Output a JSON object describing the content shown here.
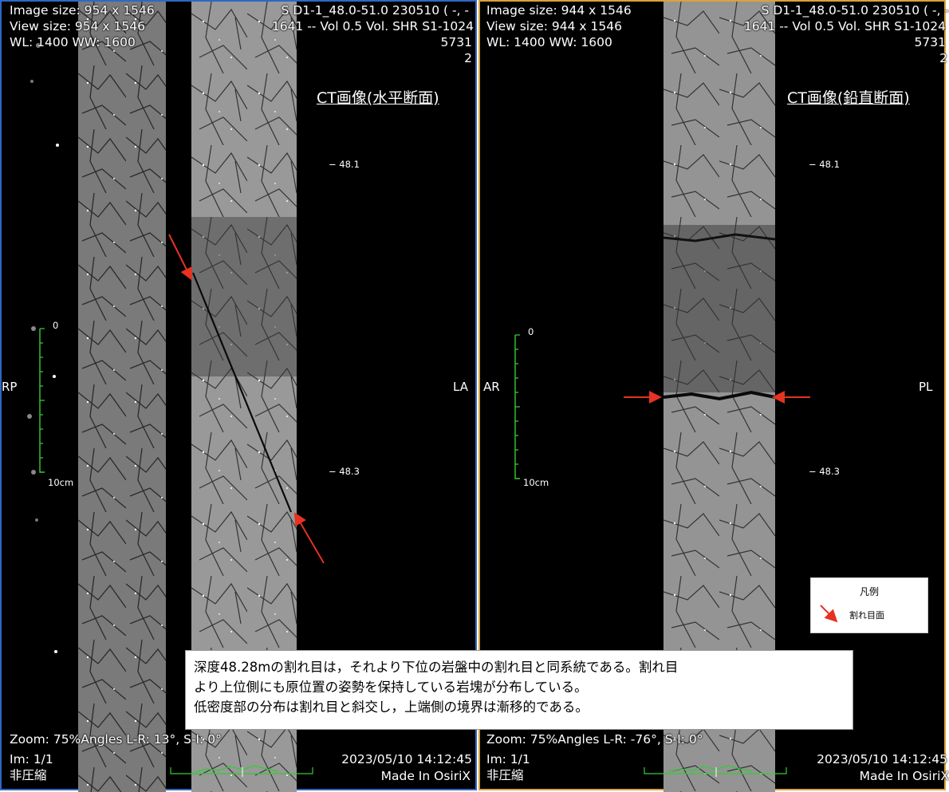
{
  "left": {
    "image_size": "Image size: 954 x 1546",
    "view_size": "View size: 954 x 1546",
    "wlww": "WL: 1400 WW: 1600",
    "series": "S  D1-1_48.0-51.0 230510 ( -, -",
    "vol": "1641 -- Vol 0.5 Vol. SHR S1-1024",
    "num1": "5731",
    "num2": "2",
    "ct_title": "CT画像(水平断面)",
    "orient_left": "RP",
    "orient_right": "LA",
    "depth_top": "− 48.1",
    "depth_bottom": "− 48.3",
    "scale_zero": "0",
    "scale_label": "10cm",
    "zoom": "Zoom: 75%Angles L-R: 13°, S-I: 0°",
    "im": "Im: 1/1",
    "compress": "非圧縮",
    "datetime": "2023/05/10 14:12:45",
    "made_in": "Made In OsiriX"
  },
  "right": {
    "image_size": "Image size: 944 x 1546",
    "view_size": "View size: 944 x 1546",
    "wlww": "WL: 1400 WW: 1600",
    "series": "S  D1-1_48.0-51.0 230510 ( -, -",
    "vol": "1641 -- Vol 0.5 Vol. SHR S1-1024",
    "num1": "5731",
    "num2": "2",
    "ct_title": "CT画像(鉛直断面)",
    "orient_left": "AR",
    "orient_right": "PL",
    "depth_top": "− 48.1",
    "depth_bottom": "− 48.3",
    "scale_zero": "0",
    "scale_label": "10cm",
    "zoom": "Zoom: 75%Angles L-R: -76°, S-I: 0°",
    "im": "Im: 1/1",
    "compress": "非圧縮",
    "datetime": "2023/05/10 14:12:45",
    "made_in": "Made In OsiriX"
  },
  "legend": {
    "title": "凡例",
    "item": "割れ目面"
  },
  "caption": {
    "line1": "深度48.28mの割れ目は，それより下位の岩盤中の割れ目と同系統である。割れ目",
    "line2": "より上位側にも原位置の姿勢を保持している岩塊が分布している。",
    "line3": "低密度部の分布は割れ目と斜交し，上端側の境界は漸移的である。"
  },
  "colors": {
    "left_border": "#2f67c7",
    "right_border": "#d9a23c",
    "arrow": "#e53222",
    "scale": "#33cc33"
  }
}
